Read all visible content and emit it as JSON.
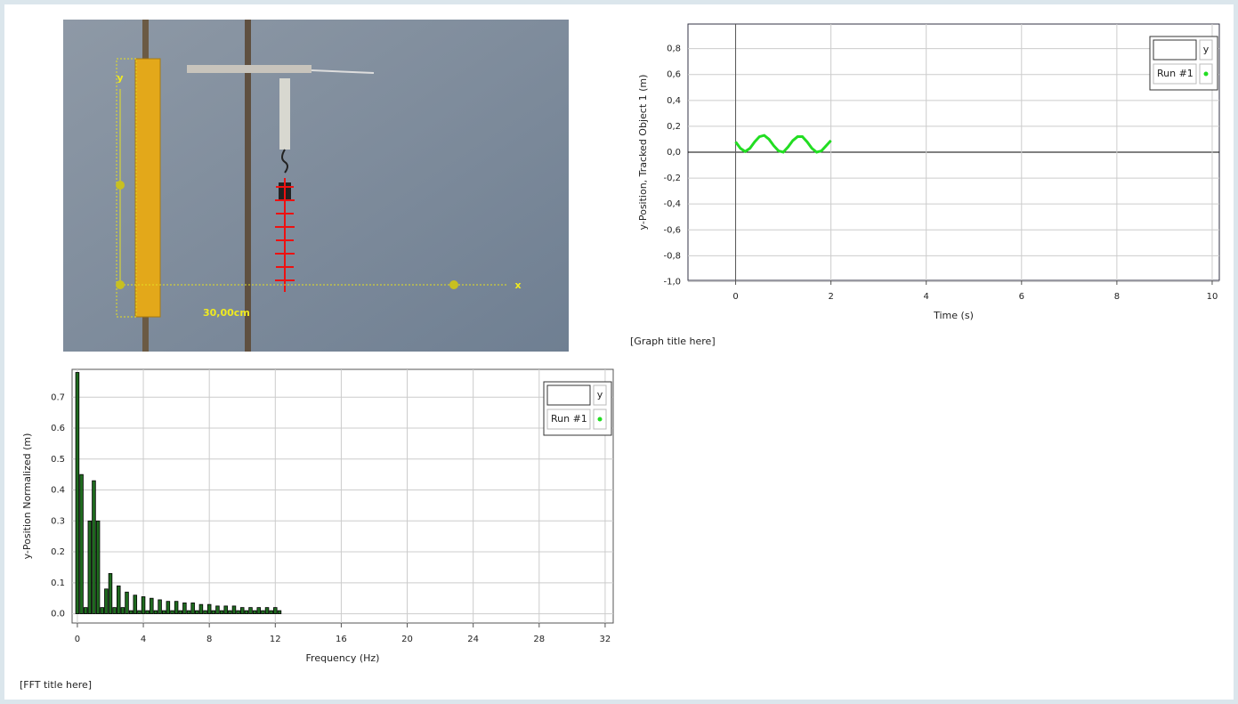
{
  "video": {
    "labels": [
      "y",
      "x",
      "30,00cm"
    ]
  },
  "chart_data": [
    {
      "type": "line",
      "caption": "[Graph title here]",
      "x_label": "Time (s)",
      "y_label": "y-Position, Tracked Object 1 (m)",
      "legend_title": "y",
      "x": [
        0,
        0.1,
        0.2,
        0.3,
        0.4,
        0.5,
        0.6,
        0.7,
        0.8,
        0.9,
        1.0,
        1.1,
        1.2,
        1.3,
        1.4,
        1.5,
        1.6,
        1.7,
        1.8,
        1.9,
        2.0
      ],
      "series": [
        {
          "name": "Run #1",
          "color": "#22dd22",
          "values": [
            0.08,
            0.03,
            0.005,
            0.03,
            0.08,
            0.12,
            0.13,
            0.1,
            0.05,
            0.01,
            0.0,
            0.04,
            0.09,
            0.12,
            0.12,
            0.08,
            0.03,
            0.0,
            0.01,
            0.05,
            0.09
          ]
        }
      ],
      "xlim": [
        -1,
        10.15
      ],
      "xticks": [
        0,
        2,
        4,
        6,
        8,
        10
      ],
      "ylim": [
        -0.99,
        0.99
      ],
      "yticks": [
        {
          "value": -1,
          "label": "-1,0"
        },
        {
          "value": -0.8,
          "label": "-0,8"
        },
        {
          "value": -0.6,
          "label": "-0,6"
        },
        {
          "value": -0.4,
          "label": "-0,4"
        },
        {
          "value": -0.2,
          "label": "-0,2"
        },
        {
          "value": 0,
          "label": "0,0"
        },
        {
          "value": 0.2,
          "label": "0,2"
        },
        {
          "value": 0.4,
          "label": "0,4"
        },
        {
          "value": 0.6,
          "label": "0,6"
        },
        {
          "value": 0.8,
          "label": "0,8"
        }
      ],
      "grid": true
    },
    {
      "type": "bar",
      "caption": "[FFT title here]",
      "x_label": "Frequency (Hz)",
      "y_label": "y-Position Normalized (m)",
      "legend_title": "y",
      "x": [
        0,
        0.25,
        0.5,
        0.75,
        1,
        1.25,
        1.5,
        1.75,
        2,
        2.25,
        2.5,
        2.75,
        3,
        3.25,
        3.5,
        3.75,
        4,
        4.25,
        4.5,
        4.75,
        5,
        5.25,
        5.5,
        5.75,
        6,
        6.25,
        6.5,
        6.75,
        7,
        7.25,
        7.5,
        7.75,
        8,
        8.25,
        8.5,
        8.75,
        9,
        9.25,
        9.5,
        9.75,
        10,
        10.25,
        10.5,
        10.75,
        11,
        11.25,
        11.5,
        11.75,
        12,
        12.25
      ],
      "series": [
        {
          "name": "Run #1",
          "color": "#1f6b1f",
          "values": [
            0.78,
            0.45,
            0.02,
            0.3,
            0.43,
            0.3,
            0.02,
            0.08,
            0.13,
            0.02,
            0.09,
            0.02,
            0.07,
            0.01,
            0.06,
            0.01,
            0.055,
            0.01,
            0.05,
            0.01,
            0.045,
            0.01,
            0.04,
            0.01,
            0.04,
            0.01,
            0.035,
            0.01,
            0.035,
            0.01,
            0.03,
            0.01,
            0.03,
            0.01,
            0.025,
            0.01,
            0.025,
            0.01,
            0.025,
            0.01,
            0.02,
            0.01,
            0.02,
            0.01,
            0.02,
            0.01,
            0.02,
            0.01,
            0.02,
            0.01
          ]
        }
      ],
      "xlim": [
        -0.32,
        32.49
      ],
      "xticks": [
        0,
        4,
        8,
        12,
        16,
        20,
        24,
        28,
        32
      ],
      "ylim": [
        -0.03,
        0.79
      ],
      "yticks": [
        {
          "value": 0,
          "label": "0.0"
        },
        0.1,
        0.2,
        0.3,
        0.4,
        0.5,
        0.6,
        0.7
      ],
      "grid": true
    }
  ]
}
